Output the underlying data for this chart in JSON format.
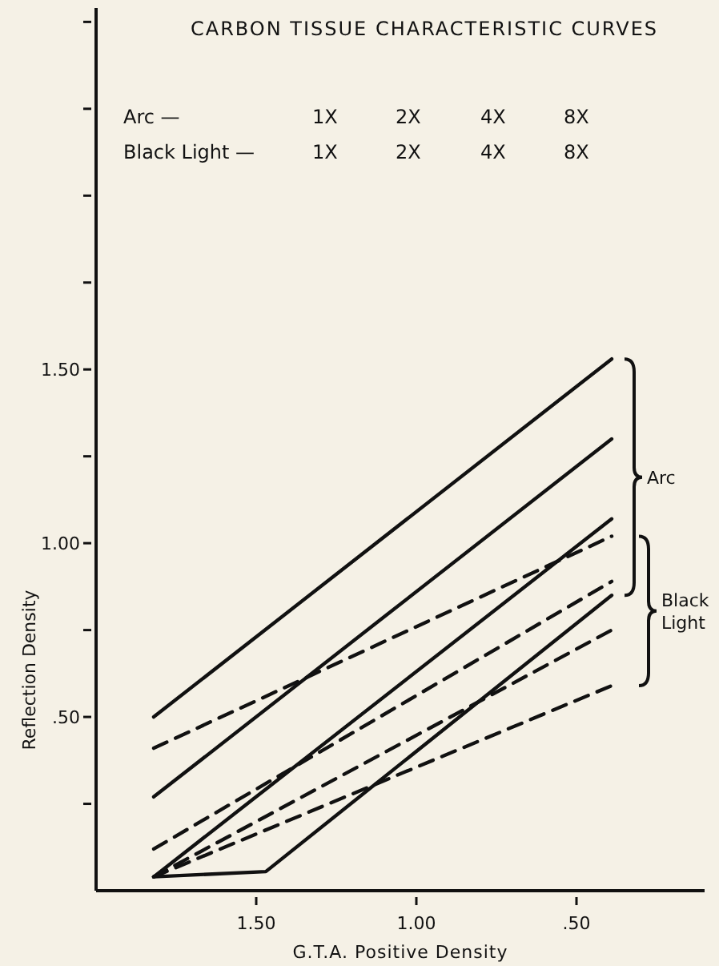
{
  "chart_data": {
    "type": "line",
    "title": "CARBON TISSUE CHARACTERISTIC CURVES",
    "xlabel": "G.T.A. Positive Density",
    "ylabel": "Reflection Density",
    "xlim": [
      2.0,
      0.1
    ],
    "xticks": [
      {
        "value": 1.5,
        "label": "1.50"
      },
      {
        "value": 1.0,
        "label": "1.00"
      },
      {
        "value": 0.5,
        "label": ".50"
      }
    ],
    "ylim": [
      0,
      2.54
    ],
    "yticks": [
      {
        "value": 0.25,
        "label": null
      },
      {
        "value": 0.5,
        "label": ".50"
      },
      {
        "value": 0.75,
        "label": null
      },
      {
        "value": 1.0,
        "label": "1.00"
      },
      {
        "value": 1.25,
        "label": null
      },
      {
        "value": 1.5,
        "label": "1.50"
      },
      {
        "value": 1.75,
        "label": null
      },
      {
        "value": 2.0,
        "label": null
      },
      {
        "value": 2.25,
        "label": null
      },
      {
        "value": 2.5,
        "label": null
      }
    ],
    "grid": false,
    "marker": "none",
    "series": [
      {
        "color": "#111111",
        "line_style": "solid",
        "x": [
          1.82,
          0.39
        ],
        "values": [
          0.5,
          1.53
        ]
      },
      {
        "color": "#111111",
        "line_style": "solid",
        "x": [
          1.82,
          0.39
        ],
        "values": [
          0.27,
          1.3
        ]
      },
      {
        "color": "#111111",
        "line_style": "solid",
        "x": [
          1.82,
          0.39
        ],
        "values": [
          0.04,
          1.07
        ]
      },
      {
        "color": "#111111",
        "line_style": "solid",
        "x": [
          1.82,
          1.47,
          0.39
        ],
        "values": [
          0.04,
          0.055,
          0.85
        ]
      },
      {
        "color": "#111111",
        "line_style": "dashed",
        "x": [
          1.82,
          0.39
        ],
        "values": [
          0.41,
          1.02
        ]
      },
      {
        "color": "#111111",
        "line_style": "dashed",
        "x": [
          1.82,
          0.39
        ],
        "values": [
          0.12,
          0.89
        ]
      },
      {
        "color": "#111111",
        "line_style": "dashed",
        "x": [
          1.82,
          0.39
        ],
        "values": [
          0.04,
          0.75
        ]
      },
      {
        "color": "#111111",
        "line_style": "dashed",
        "x": [
          1.82,
          0.39
        ],
        "values": [
          0.04,
          0.59
        ]
      }
    ],
    "annotations": [
      "Arc —",
      "1X",
      "2X",
      "4X",
      "8X",
      "Black Light —",
      "1X",
      "2X",
      "4X",
      "8X",
      "Arc",
      "Black Light"
    ]
  }
}
